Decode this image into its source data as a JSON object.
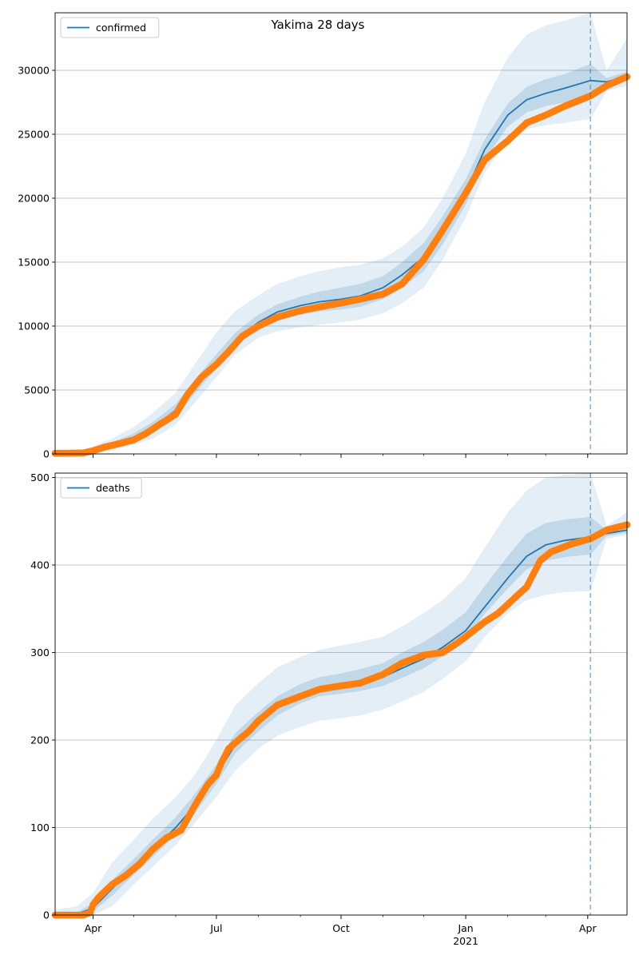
{
  "figure": {
    "title": "Yakima 28 days",
    "x_ticks": [
      {
        "date": "2020-04-01",
        "label": "Apr",
        "sublabel": ""
      },
      {
        "date": "2020-07-01",
        "label": "Jul",
        "sublabel": ""
      },
      {
        "date": "2020-10-01",
        "label": "Oct",
        "sublabel": ""
      },
      {
        "date": "2021-01-01",
        "label": "Jan",
        "sublabel": "2021"
      },
      {
        "date": "2021-04-01",
        "label": "Apr",
        "sublabel": ""
      }
    ],
    "forecast_start": "2021-04-03"
  },
  "chart_data": [
    {
      "type": "line",
      "legend_position": "top-left",
      "grid": "horizontal",
      "xlim": [
        "2020-03-04",
        "2021-04-30"
      ],
      "ylim": [
        0,
        34500
      ],
      "y_ticks": [
        0,
        5000,
        10000,
        15000,
        20000,
        25000,
        30000
      ],
      "colors": {
        "fit": "#1f77b4",
        "observed": "#ff7f0e",
        "band": "#1f77b4"
      },
      "series": [
        {
          "name": "confirmed",
          "kind": "fit_with_bands",
          "x": [
            "2020-03-04",
            "2020-03-20",
            "2020-04-01",
            "2020-04-15",
            "2020-05-01",
            "2020-05-15",
            "2020-06-01",
            "2020-06-15",
            "2020-07-01",
            "2020-07-15",
            "2020-08-01",
            "2020-08-15",
            "2020-09-01",
            "2020-09-15",
            "2020-10-01",
            "2020-10-15",
            "2020-11-01",
            "2020-11-15",
            "2020-12-01",
            "2020-12-15",
            "2021-01-01",
            "2021-01-15",
            "2021-02-01",
            "2021-02-15",
            "2021-03-01",
            "2021-03-15",
            "2021-04-03",
            "2021-04-15",
            "2021-04-30"
          ],
          "y": [
            0,
            50,
            300,
            700,
            1300,
            2100,
            3400,
            5200,
            7200,
            8900,
            10300,
            11100,
            11600,
            11900,
            12100,
            12350,
            13000,
            14000,
            15400,
            17500,
            20500,
            23800,
            26500,
            27700,
            28200,
            28600,
            29200,
            29100,
            29550
          ],
          "lo95": [
            0,
            0,
            50,
            300,
            700,
            1200,
            2300,
            4000,
            6000,
            7800,
            9100,
            9600,
            9900,
            10100,
            10300,
            10500,
            11000,
            11800,
            13000,
            15200,
            18500,
            22000,
            24600,
            25400,
            25700,
            25900,
            26200,
            28400,
            28800
          ],
          "lo50": [
            0,
            20,
            180,
            500,
            1000,
            1700,
            2900,
            4700,
            6700,
            8400,
            9800,
            10500,
            10900,
            11150,
            11300,
            11500,
            12100,
            13000,
            14300,
            16400,
            19500,
            23000,
            25600,
            26700,
            27200,
            27500,
            27900,
            28800,
            29200
          ],
          "hi50": [
            0,
            80,
            420,
            900,
            1600,
            2500,
            3900,
            5800,
            7800,
            9500,
            10900,
            11700,
            12300,
            12700,
            13000,
            13300,
            13900,
            15000,
            16500,
            18600,
            21500,
            24600,
            27400,
            28700,
            29300,
            29700,
            30500,
            29400,
            29900
          ],
          "hi95": [
            0,
            150,
            600,
            1200,
            2100,
            3200,
            4800,
            7000,
            9500,
            11200,
            12400,
            13300,
            13900,
            14300,
            14600,
            14800,
            15300,
            16200,
            17700,
            20000,
            23500,
            27500,
            31000,
            32800,
            33500,
            33900,
            34500,
            30000,
            32500
          ]
        },
        {
          "name": "",
          "kind": "observed",
          "x": [
            "2020-03-04",
            "2020-03-25",
            "2020-04-01",
            "2020-04-10",
            "2020-04-20",
            "2020-05-01",
            "2020-05-10",
            "2020-05-20",
            "2020-06-01",
            "2020-06-10",
            "2020-06-20",
            "2020-07-01",
            "2020-07-10",
            "2020-07-20",
            "2020-08-01",
            "2020-08-15",
            "2020-09-01",
            "2020-09-15",
            "2020-10-01",
            "2020-10-15",
            "2020-11-01",
            "2020-11-15",
            "2020-12-01",
            "2020-12-15",
            "2021-01-01",
            "2021-01-15",
            "2021-02-01",
            "2021-02-15",
            "2021-03-01",
            "2021-03-15",
            "2021-04-03",
            "2021-04-15",
            "2021-04-30"
          ],
          "y": [
            50,
            80,
            250,
            550,
            800,
            1100,
            1600,
            2300,
            3100,
            4700,
            6000,
            7000,
            8000,
            9200,
            10000,
            10700,
            11200,
            11500,
            11800,
            12100,
            12500,
            13300,
            15200,
            17500,
            20400,
            23000,
            24500,
            25900,
            26500,
            27200,
            28000,
            28800,
            29500
          ]
        }
      ]
    },
    {
      "type": "line",
      "legend_position": "top-left",
      "grid": "horizontal",
      "xlim": [
        "2020-03-04",
        "2021-04-30"
      ],
      "ylim": [
        0,
        505
      ],
      "y_ticks": [
        0,
        100,
        200,
        300,
        400,
        500
      ],
      "colors": {
        "fit": "#1f77b4",
        "observed": "#ff7f0e",
        "band": "#1f77b4"
      },
      "series": [
        {
          "name": "deaths",
          "kind": "fit_with_bands",
          "x": [
            "2020-03-04",
            "2020-03-20",
            "2020-04-01",
            "2020-04-15",
            "2020-05-01",
            "2020-05-15",
            "2020-06-01",
            "2020-06-15",
            "2020-07-01",
            "2020-07-15",
            "2020-08-01",
            "2020-08-15",
            "2020-09-01",
            "2020-09-15",
            "2020-10-01",
            "2020-10-15",
            "2020-11-01",
            "2020-11-15",
            "2020-12-01",
            "2020-12-15",
            "2021-01-01",
            "2021-01-15",
            "2021-02-01",
            "2021-02-15",
            "2021-03-01",
            "2021-03-15",
            "2021-04-03",
            "2021-04-15",
            "2021-04-30"
          ],
          "y": [
            0,
            1,
            8,
            30,
            55,
            75,
            100,
            125,
            160,
            195,
            220,
            238,
            252,
            260,
            262,
            266,
            272,
            282,
            293,
            306,
            325,
            352,
            385,
            410,
            423,
            428,
            432,
            436,
            440
          ],
          "lo95": [
            0,
            0,
            0,
            10,
            35,
            55,
            80,
            105,
            135,
            165,
            190,
            205,
            215,
            222,
            225,
            228,
            235,
            244,
            255,
            270,
            290,
            318,
            345,
            360,
            366,
            369,
            370,
            430,
            434
          ],
          "lo50": [
            0,
            0,
            4,
            22,
            46,
            66,
            92,
            116,
            150,
            185,
            210,
            228,
            242,
            250,
            253,
            256,
            262,
            271,
            282,
            296,
            316,
            344,
            373,
            395,
            405,
            409,
            412,
            433,
            437
          ],
          "hi50": [
            0,
            3,
            14,
            40,
            64,
            86,
            112,
            138,
            172,
            208,
            232,
            250,
            264,
            272,
            276,
            281,
            288,
            300,
            312,
            326,
            346,
            376,
            410,
            436,
            448,
            452,
            455,
            440,
            443
          ],
          "hi95": [
            6,
            10,
            25,
            60,
            86,
            110,
            135,
            160,
            200,
            240,
            265,
            283,
            295,
            303,
            308,
            312,
            318,
            330,
            345,
            360,
            385,
            420,
            460,
            485,
            500,
            503,
            505,
            445,
            460
          ]
        },
        {
          "name": "",
          "kind": "observed",
          "x": [
            "2020-03-04",
            "2020-03-25",
            "2020-03-30",
            "2020-04-01",
            "2020-04-05",
            "2020-04-15",
            "2020-04-25",
            "2020-05-05",
            "2020-05-15",
            "2020-05-25",
            "2020-06-05",
            "2020-06-15",
            "2020-06-25",
            "2020-07-01",
            "2020-07-05",
            "2020-07-10",
            "2020-07-15",
            "2020-07-25",
            "2020-08-01",
            "2020-08-15",
            "2020-09-01",
            "2020-09-15",
            "2020-10-01",
            "2020-10-15",
            "2020-11-01",
            "2020-11-15",
            "2020-12-01",
            "2020-12-15",
            "2020-12-25",
            "2021-01-01",
            "2021-01-15",
            "2021-01-25",
            "2021-02-01",
            "2021-02-10",
            "2021-02-15",
            "2021-02-25",
            "2021-03-05",
            "2021-03-20",
            "2021-04-03",
            "2021-04-15",
            "2021-04-30"
          ],
          "y": [
            0,
            0,
            3,
            12,
            20,
            35,
            45,
            58,
            75,
            88,
            97,
            125,
            150,
            160,
            175,
            190,
            197,
            210,
            222,
            240,
            250,
            258,
            262,
            265,
            275,
            288,
            297,
            300,
            310,
            318,
            335,
            345,
            355,
            368,
            375,
            405,
            415,
            424,
            430,
            440,
            446
          ]
        }
      ]
    }
  ]
}
